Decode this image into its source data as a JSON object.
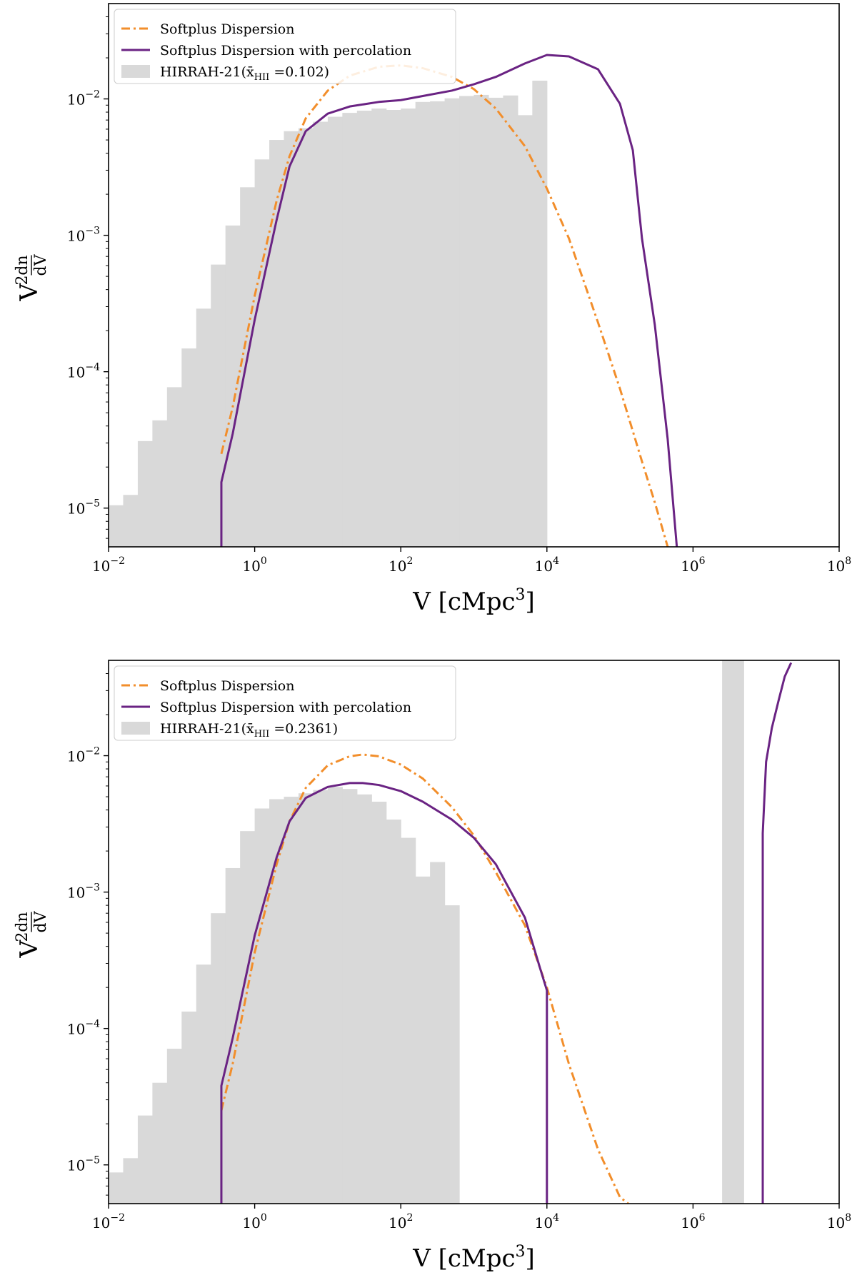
{
  "figure": {
    "panels": [
      {
        "legend": {
          "items": [
            {
              "label": "Softplus Dispersion",
              "kind": "line",
              "color": "#f28e2b",
              "dash": "dashdot"
            },
            {
              "label": "Softplus Dispersion with percolation",
              "kind": "line",
              "color": "#6a2383",
              "dash": "solid"
            },
            {
              "label": "HIRRAH-21(x̄",
              "label_sub": "HII",
              "label_value": " =0.102)",
              "kind": "patch",
              "color": "#d9d9d9"
            }
          ]
        }
      },
      {
        "legend": {
          "items": [
            {
              "label": "Softplus Dispersion",
              "kind": "line",
              "color": "#f28e2b",
              "dash": "dashdot"
            },
            {
              "label": "Softplus Dispersion with percolation",
              "kind": "line",
              "color": "#6a2383",
              "dash": "solid"
            },
            {
              "label": "HIRRAH-21(x̄",
              "label_sub": "HII",
              "label_value": " =0.2361)",
              "kind": "patch",
              "color": "#d9d9d9"
            }
          ]
        }
      }
    ]
  },
  "chart_data": [
    {
      "type": "bar",
      "title": "",
      "xlabel": "V [cMpc",
      "xlabel_sup": "3",
      "xlabel_end": "]",
      "ylabel": "V",
      "ylabel_sup": "2",
      "ylabel_num": "dn",
      "ylabel_den": "dV",
      "xscale": "log",
      "yscale": "log",
      "xlim": [
        0.01,
        100000000
      ],
      "ylim": [
        5.2e-06,
        0.05
      ],
      "legend_position": "upper-left",
      "x_ticks": [
        {
          "base": "10",
          "exp": "−2",
          "value": 0.01
        },
        {
          "base": "10",
          "exp": "0",
          "value": 1
        },
        {
          "base": "10",
          "exp": "2",
          "value": 100
        },
        {
          "base": "10",
          "exp": "4",
          "value": 10000
        },
        {
          "base": "10",
          "exp": "6",
          "value": 1000000
        },
        {
          "base": "10",
          "exp": "8",
          "value": 100000000
        }
      ],
      "y_ticks": [
        {
          "base": "10",
          "exp": "−5",
          "value": 1e-05
        },
        {
          "base": "10",
          "exp": "−4",
          "value": 0.0001
        },
        {
          "base": "10",
          "exp": "−3",
          "value": 0.001
        },
        {
          "base": "10",
          "exp": "−2",
          "value": 0.01
        }
      ],
      "histogram": {
        "name": "HIRRAH-21 (x̄HII = 0.102)",
        "bin_log_edges_start": -2.0,
        "bin_log_width": 0.2,
        "values": [
          1.05e-05,
          1.25e-05,
          3.1e-05,
          4.4e-05,
          7.7e-05,
          0.000148,
          0.00029,
          0.00061,
          0.00118,
          0.00225,
          0.0036,
          0.005,
          0.0058,
          0.0061,
          0.0068,
          0.0074,
          0.0079,
          0.0082,
          0.0085,
          0.0083,
          0.0085,
          0.0095,
          0.0096,
          0.0101,
          0.0105,
          0.0107,
          0.0102,
          0.0106,
          0.0076,
          0.0136
        ]
      },
      "series": [
        {
          "name": "Softplus Dispersion",
          "style": "dashdot",
          "color": "#f28e2b",
          "x": [
            0.35,
            0.5,
            1,
            2,
            3,
            5,
            10,
            20,
            50,
            100,
            200,
            500,
            1000,
            2000,
            5000,
            10000,
            20000,
            50000,
            100000,
            200000,
            300000,
            450000
          ],
          "y": [
            2.5e-05,
            5.5e-05,
            0.00036,
            0.0018,
            0.0038,
            0.0072,
            0.0115,
            0.0148,
            0.0172,
            0.0176,
            0.0168,
            0.0145,
            0.0118,
            0.0085,
            0.0045,
            0.0022,
            0.00095,
            0.00023,
            7.5e-05,
            2.2e-05,
            1.1e-05,
            5.2e-06
          ]
        },
        {
          "name": "Softplus Dispersion with percolation",
          "style": "solid",
          "color": "#6a2383",
          "x": [
            0.35,
            0.35,
            0.5,
            1,
            2,
            3,
            5,
            10,
            20,
            50,
            100,
            200,
            500,
            1000,
            2000,
            5000,
            10000,
            20000,
            50000,
            100000,
            150000,
            200000,
            300000,
            450000,
            600000
          ],
          "y": [
            5.2e-06,
            1.55e-05,
            3.5e-05,
            0.00024,
            0.0013,
            0.0032,
            0.0058,
            0.0078,
            0.0088,
            0.0095,
            0.0098,
            0.0105,
            0.0115,
            0.0128,
            0.0145,
            0.0182,
            0.021,
            0.0205,
            0.0165,
            0.0092,
            0.0042,
            0.00095,
            0.00022,
            3.2e-05,
            5.2e-06
          ]
        }
      ]
    },
    {
      "type": "bar",
      "title": "",
      "xlabel": "V [cMpc",
      "xlabel_sup": "3",
      "xlabel_end": "]",
      "ylabel": "V",
      "ylabel_sup": "2",
      "ylabel_num": "dn",
      "ylabel_den": "dV",
      "xscale": "log",
      "yscale": "log",
      "xlim": [
        0.01,
        100000000
      ],
      "ylim": [
        5.2e-06,
        0.05
      ],
      "legend_position": "upper-left",
      "x_ticks": [
        {
          "base": "10",
          "exp": "−2",
          "value": 0.01
        },
        {
          "base": "10",
          "exp": "0",
          "value": 1
        },
        {
          "base": "10",
          "exp": "2",
          "value": 100
        },
        {
          "base": "10",
          "exp": "4",
          "value": 10000
        },
        {
          "base": "10",
          "exp": "6",
          "value": 1000000
        },
        {
          "base": "10",
          "exp": "8",
          "value": 100000000
        }
      ],
      "y_ticks": [
        {
          "base": "10",
          "exp": "−5",
          "value": 1e-05
        },
        {
          "base": "10",
          "exp": "−4",
          "value": 0.0001
        },
        {
          "base": "10",
          "exp": "−3",
          "value": 0.001
        },
        {
          "base": "10",
          "exp": "−2",
          "value": 0.01
        }
      ],
      "histogram": {
        "name": "HIRRAH-21 (x̄HII = 0.2361)",
        "bin_log_edges_start": -2.0,
        "bin_log_width": 0.2,
        "values": [
          8.8e-06,
          1.12e-05,
          2.3e-05,
          4e-05,
          7.1e-05,
          0.000133,
          0.000294,
          0.0007,
          0.0015,
          0.0028,
          0.0041,
          0.0048,
          0.005,
          0.0053,
          0.0056,
          0.0059,
          0.0057,
          0.0052,
          0.0046,
          0.0034,
          0.0025,
          0.0013,
          0.00166,
          0.0008
        ],
        "extra_bars": [
          {
            "x_from": 2500000,
            "x_to": 5000000,
            "value": 0.05
          }
        ]
      },
      "series": [
        {
          "name": "Softplus Dispersion",
          "style": "dashdot",
          "color": "#f28e2b",
          "x": [
            0.35,
            0.5,
            1,
            2,
            3,
            5,
            10,
            20,
            30,
            50,
            100,
            200,
            500,
            1000,
            2000,
            5000,
            10000,
            20000,
            50000,
            100000,
            130000
          ],
          "y": [
            2.5e-05,
            5.5e-05,
            0.00036,
            0.0016,
            0.0033,
            0.0058,
            0.0085,
            0.0099,
            0.0102,
            0.0099,
            0.0086,
            0.0068,
            0.0042,
            0.0026,
            0.0014,
            0.00057,
            0.0002,
            5.5e-05,
            1.3e-05,
            5.8e-06,
            5.2e-06
          ]
        },
        {
          "name": "Softplus Dispersion with percolation",
          "style": "solid",
          "color": "#6a2383",
          "x": [
            0.35,
            0.35,
            0.5,
            1,
            2,
            3,
            5,
            10,
            20,
            30,
            50,
            100,
            200,
            500,
            1000,
            2000,
            5000,
            8000,
            10000,
            10000
          ],
          "y": [
            5.2e-06,
            3.8e-05,
            8.5e-05,
            0.00048,
            0.0018,
            0.0033,
            0.0049,
            0.0059,
            0.0063,
            0.0063,
            0.0061,
            0.0055,
            0.0046,
            0.0034,
            0.0025,
            0.0016,
            0.00065,
            0.00028,
            0.00019,
            5.2e-06
          ]
        },
        {
          "name": "Softplus Dispersion with percolation (large-V branch)",
          "style": "solid",
          "color": "#6a2383",
          "x": [
            9000000,
            9000000,
            10000000,
            12000000,
            15000000,
            18000000,
            22000000
          ],
          "y": [
            5.2e-06,
            0.0027,
            0.009,
            0.016,
            0.026,
            0.038,
            0.048
          ]
        }
      ]
    }
  ]
}
